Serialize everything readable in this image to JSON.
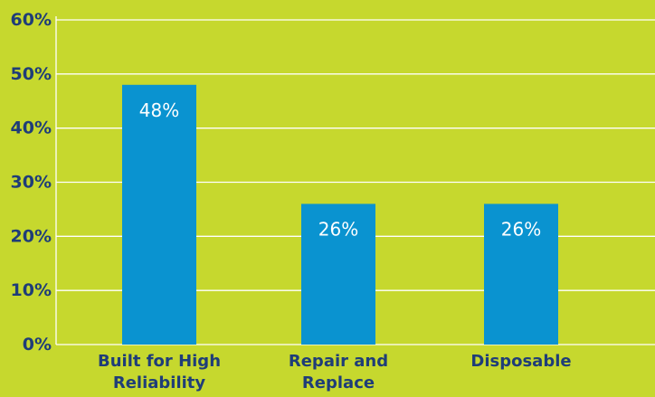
{
  "chart_data": {
    "type": "bar",
    "categories": [
      [
        "Built for High",
        "Reliability"
      ],
      [
        "Repair and",
        "Replace"
      ],
      [
        "Disposable"
      ]
    ],
    "values": [
      48,
      26,
      26
    ],
    "data_labels": [
      "48%",
      "26%",
      "26%"
    ],
    "ylim": [
      0,
      60
    ],
    "yticks": [
      0,
      10,
      20,
      30,
      40,
      50,
      60
    ],
    "ytick_labels": [
      "0%",
      "10%",
      "20%",
      "30%",
      "40%",
      "50%",
      "60%"
    ],
    "grid": true,
    "title": "",
    "xlabel": "",
    "ylabel": ""
  },
  "colors": {
    "background": "#c6d82e",
    "bar": "#0a93d0",
    "gridline": "#ffffff",
    "axis_text": "#1f3d78",
    "data_label": "#ffffff"
  }
}
